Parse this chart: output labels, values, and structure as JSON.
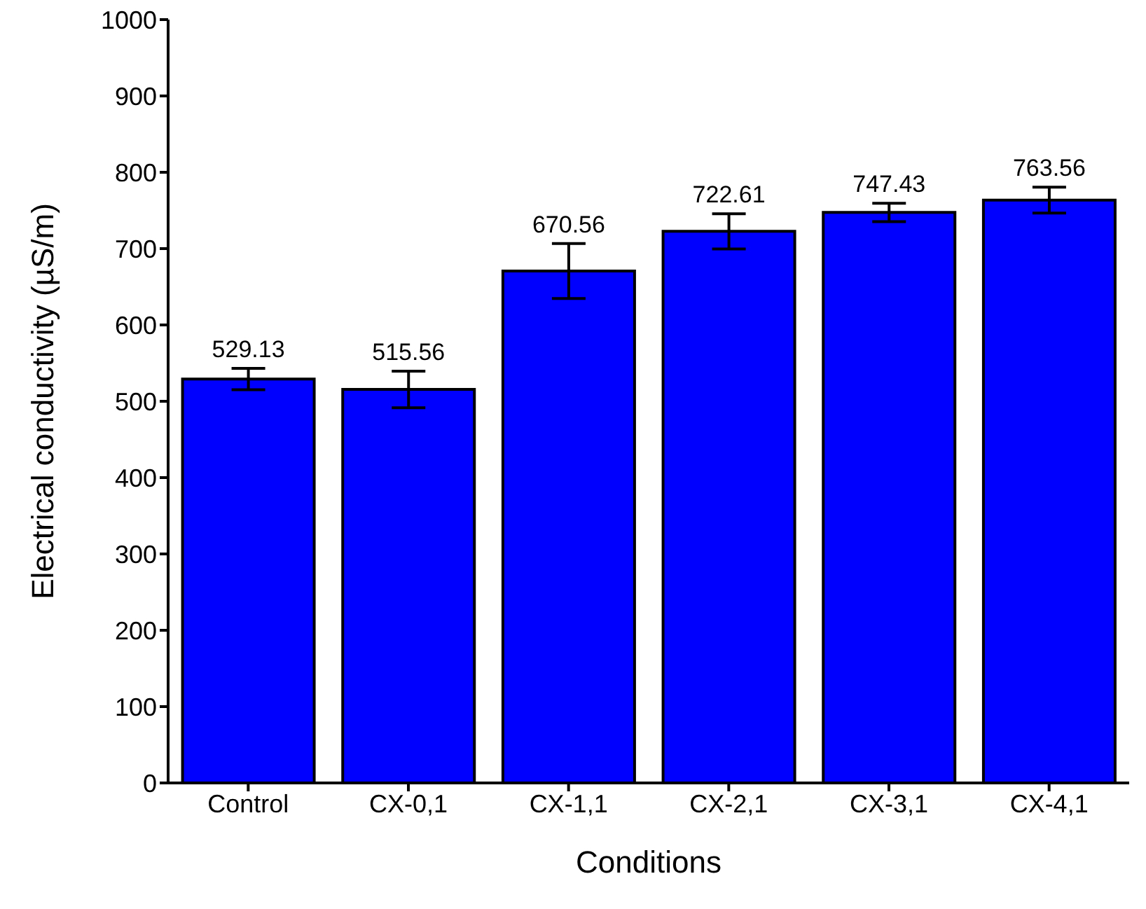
{
  "chart_data": {
    "type": "bar",
    "xlabel": "Conditions",
    "ylabel": "Electrical conductivity (µS/m)",
    "categories": [
      "Control",
      "CX-0,1",
      "CX-1,1",
      "CX-2,1",
      "CX-3,1",
      "CX-4,1"
    ],
    "values": [
      529.13,
      515.56,
      670.56,
      722.61,
      747.43,
      763.56
    ],
    "errors": [
      14,
      24,
      36,
      23,
      12,
      17
    ],
    "color": "#0000ff",
    "data_labels": true,
    "ylim": [
      0,
      1000
    ],
    "yticks": [
      0,
      100,
      200,
      300,
      400,
      500,
      600,
      700,
      800,
      900,
      1000
    ]
  }
}
